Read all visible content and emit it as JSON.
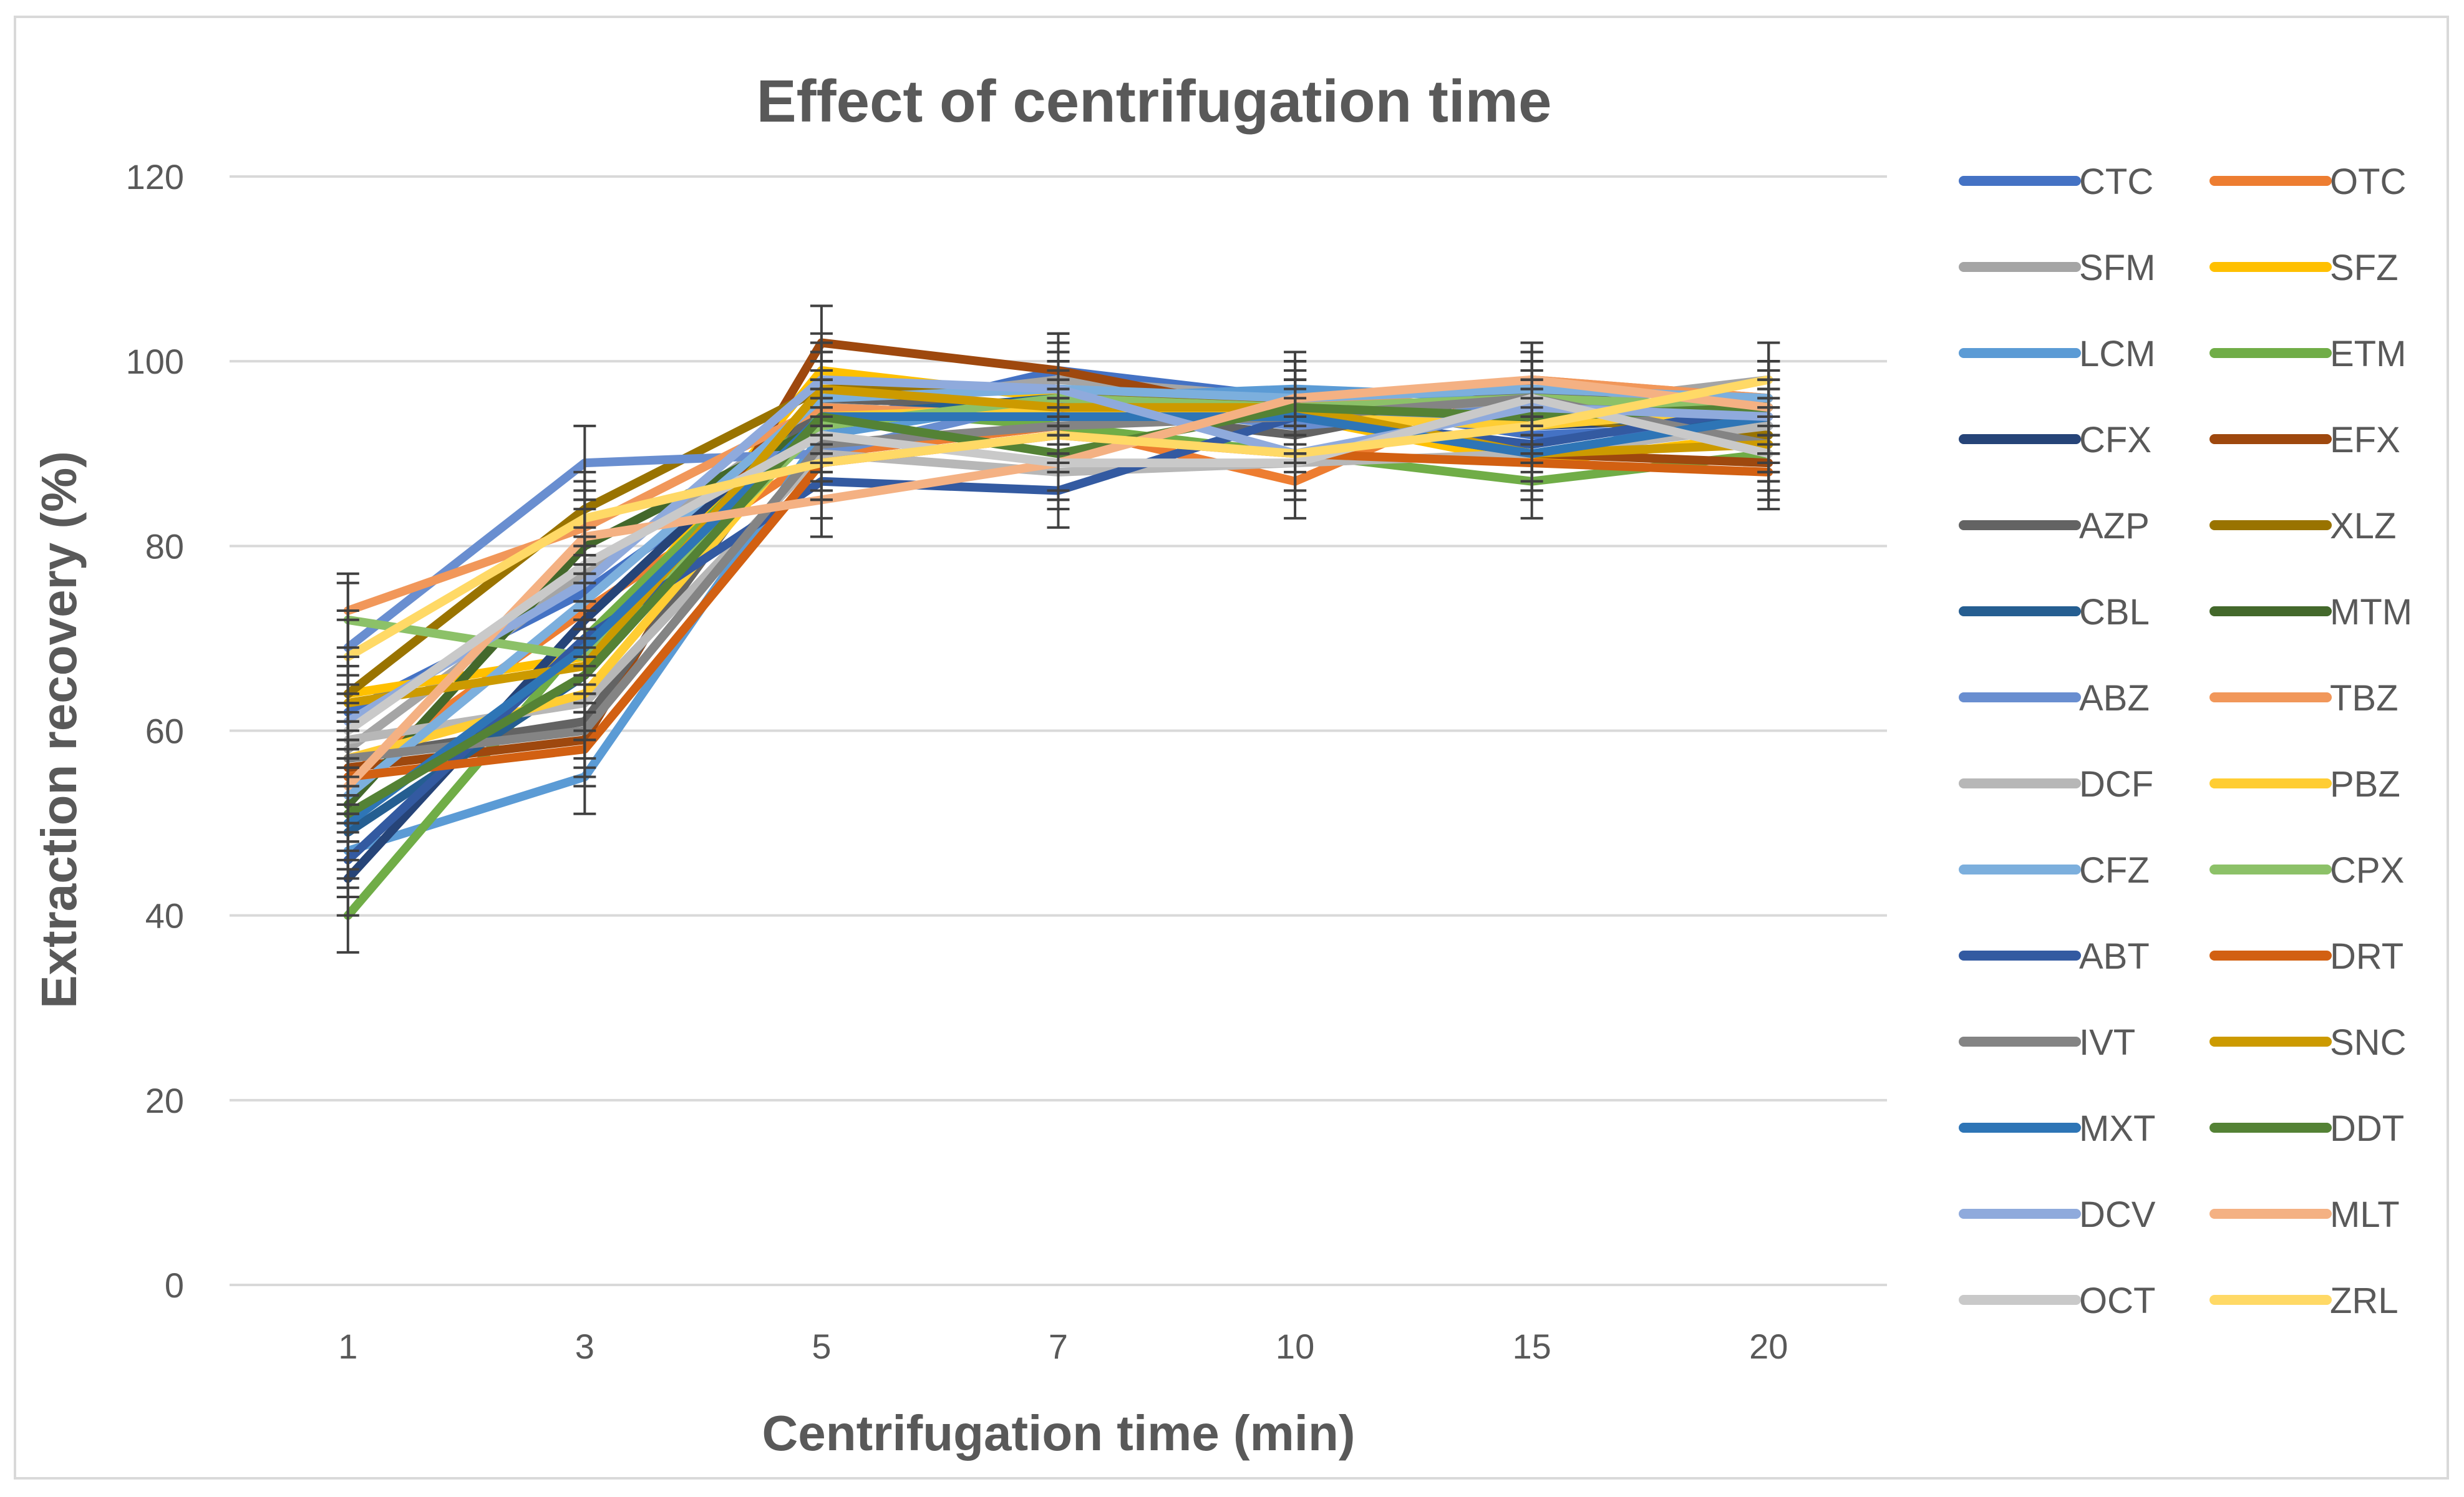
{
  "chart_data": {
    "type": "line",
    "title": "Effect of centrifugation time",
    "xlabel": "Centrifugation time (min)",
    "ylabel": "Extraction recovery (%)",
    "categories": [
      "1",
      "3",
      "5",
      "7",
      "10",
      "15",
      "20"
    ],
    "ylim": [
      0,
      120
    ],
    "yticks": [
      "0",
      "20",
      "40",
      "60",
      "80",
      "100",
      "120"
    ],
    "grid": "horizontal",
    "legend_position": "right",
    "error_bars": "approx. ±4 on every point",
    "series": [
      {
        "name": "CTC",
        "color": "#4472C4",
        "values": [
          62,
          75,
          93,
          99,
          96,
          92,
          93
        ]
      },
      {
        "name": "OTC",
        "color": "#ED7D31",
        "values": [
          55,
          73,
          90,
          93,
          87,
          98,
          96
        ]
      },
      {
        "name": "SFM",
        "color": "#A5A5A5",
        "values": [
          58,
          77,
          95,
          98,
          96,
          95,
          98
        ]
      },
      {
        "name": "SFZ",
        "color": "#FFC000",
        "values": [
          64,
          68,
          99,
          96,
          94,
          89,
          92
        ]
      },
      {
        "name": "LCM",
        "color": "#5B9BD5",
        "values": [
          47,
          55,
          92,
          96,
          97,
          96,
          95
        ]
      },
      {
        "name": "ETM",
        "color": "#70AD47",
        "values": [
          40,
          70,
          95,
          93,
          90,
          87,
          90
        ]
      },
      {
        "name": "CFX",
        "color": "#264478",
        "values": [
          44,
          72,
          96,
          95,
          96,
          93,
          94
        ]
      },
      {
        "name": "EFX",
        "color": "#9E480E",
        "values": [
          56,
          59,
          102,
          99,
          94,
          90,
          89
        ]
      },
      {
        "name": "AZP",
        "color": "#636363",
        "values": [
          57,
          61,
          96,
          95,
          92,
          97,
          93
        ]
      },
      {
        "name": "XLZ",
        "color": "#997300",
        "values": [
          64,
          84,
          97,
          97,
          95,
          94,
          92
        ]
      },
      {
        "name": "CBL",
        "color": "#255E91",
        "values": [
          49,
          66,
          94,
          96,
          95,
          94,
          93
        ]
      },
      {
        "name": "MTM",
        "color": "#43682B",
        "values": [
          52,
          80,
          93,
          96,
          95,
          93,
          96
        ]
      },
      {
        "name": "ABZ",
        "color": "#698ED0",
        "values": [
          69,
          89,
          90,
          96,
          93,
          95,
          95
        ]
      },
      {
        "name": "TBZ",
        "color": "#F1975A",
        "values": [
          73,
          82,
          95,
          94,
          95,
          98,
          96
        ]
      },
      {
        "name": "DCF",
        "color": "#B7B7B7",
        "values": [
          59,
          63,
          90,
          88,
          89,
          90,
          93
        ]
      },
      {
        "name": "PBZ",
        "color": "#FFCD33",
        "values": [
          57,
          64,
          94,
          95,
          94,
          93,
          95
        ]
      },
      {
        "name": "CFZ",
        "color": "#7CAFDD",
        "values": [
          53,
          74,
          96,
          97,
          96,
          97,
          96
        ]
      },
      {
        "name": "CPX",
        "color": "#8CC168",
        "values": [
          72,
          68,
          93,
          96,
          95,
          96,
          95
        ]
      },
      {
        "name": "ABT",
        "color": "#335AA1",
        "values": [
          46,
          70,
          87,
          86,
          94,
          91,
          95
        ]
      },
      {
        "name": "DRT",
        "color": "#D26012",
        "values": [
          55,
          58,
          89,
          92,
          90,
          89,
          88
        ]
      },
      {
        "name": "IVT",
        "color": "#848484",
        "values": [
          57,
          60,
          91,
          93,
          94,
          96,
          91
        ]
      },
      {
        "name": "SNC",
        "color": "#CC9A00",
        "values": [
          63,
          67,
          97,
          95,
          95,
          90,
          91
        ]
      },
      {
        "name": "MXT",
        "color": "#2E75B6",
        "values": [
          50,
          69,
          94,
          94,
          94,
          90,
          94
        ]
      },
      {
        "name": "DDT",
        "color": "#548235",
        "values": [
          51,
          66,
          94,
          90,
          95,
          94,
          95
        ]
      },
      {
        "name": "DCV",
        "color": "#8FAADC",
        "values": [
          61,
          76,
          98,
          97,
          90,
          95,
          94
        ]
      },
      {
        "name": "MLT",
        "color": "#F4B183",
        "values": [
          54,
          81,
          85,
          89,
          96,
          98,
          95
        ]
      },
      {
        "name": "OCT",
        "color": "#C9C9C9",
        "values": [
          60,
          78,
          92,
          89,
          89,
          96,
          90
        ]
      },
      {
        "name": "ZRL",
        "color": "#FFD966",
        "values": [
          68,
          83,
          89,
          92,
          90,
          93,
          98
        ]
      }
    ]
  }
}
